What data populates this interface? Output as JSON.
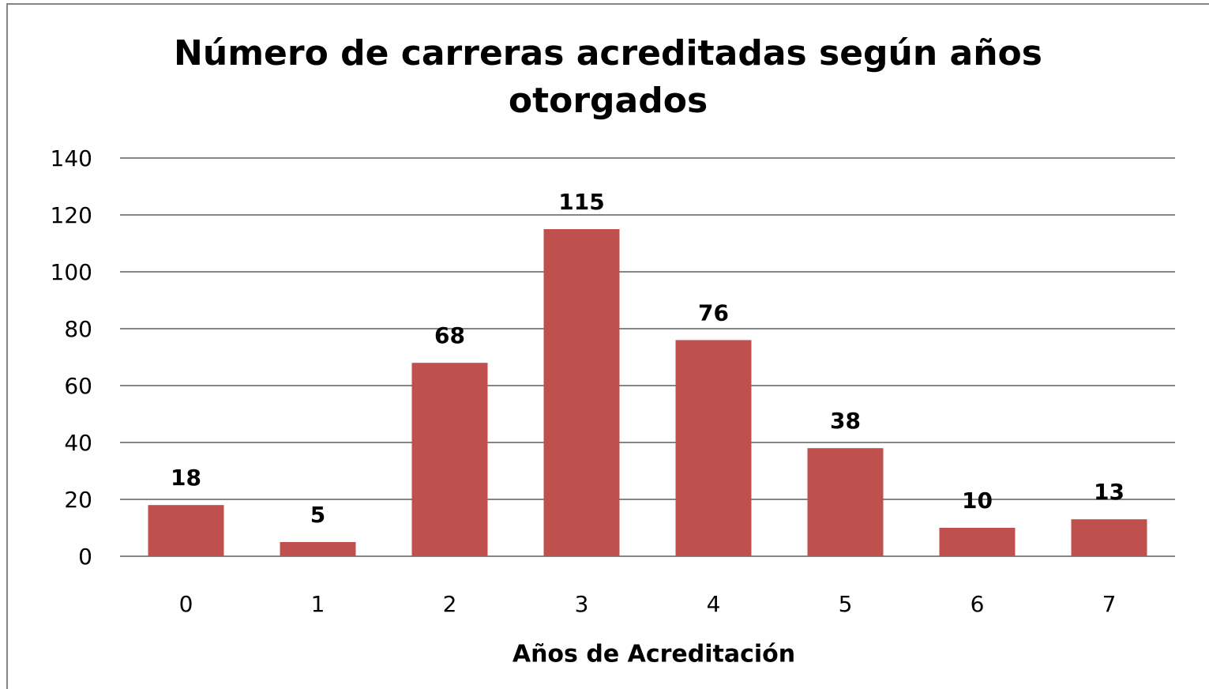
{
  "chart_data": {
    "type": "bar",
    "title": "Número de carreras acreditadas según años otorgados",
    "x_label": "Años de Acreditación",
    "categories": [
      "0",
      "1",
      "2",
      "3",
      "4",
      "5",
      "6",
      "7"
    ],
    "values": [
      18,
      5,
      68,
      115,
      76,
      38,
      10,
      13
    ],
    "color": "#c0504d",
    "ylim": [
      0,
      140
    ],
    "yticks": [
      0,
      20,
      40,
      60,
      80,
      100,
      120,
      140
    ],
    "grid": true
  }
}
